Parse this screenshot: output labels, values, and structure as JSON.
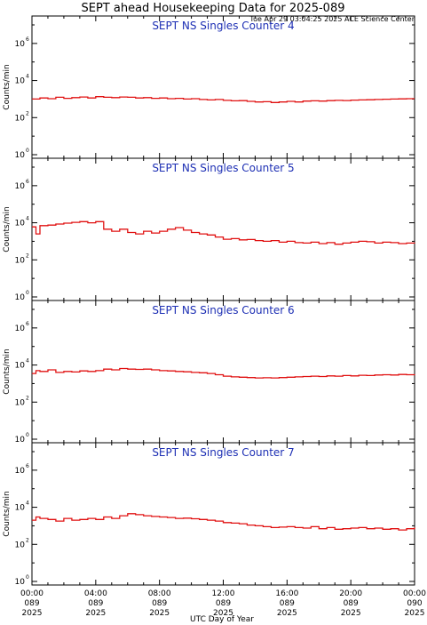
{
  "header": {
    "title": "SEPT ahead Housekeeping Data for 2025-089",
    "timestamp": "Tue Apr 29 03:04:25 2025 ACE Science Center"
  },
  "axis": {
    "ylabel": "Counts/min",
    "xlabel": "UTC Day of Year",
    "ytick_labels": [
      "10",
      "10",
      "10",
      "10"
    ],
    "ytick_exponents": [
      "0",
      "2",
      "4",
      "6"
    ],
    "xticks": [
      {
        "time": "00:00",
        "doy": "089",
        "year": "2025"
      },
      {
        "time": "04:00",
        "doy": "089",
        "year": "2025"
      },
      {
        "time": "08:00",
        "doy": "089",
        "year": "2025"
      },
      {
        "time": "12:00",
        "doy": "089",
        "year": "2025"
      },
      {
        "time": "16:00",
        "doy": "089",
        "year": "2025"
      },
      {
        "time": "20:00",
        "doy": "089",
        "year": "2025"
      },
      {
        "time": "00:00",
        "doy": "090",
        "year": "2025"
      }
    ]
  },
  "colors": {
    "series": "#e01010",
    "panel_title": "#1d2fb4",
    "axes": "#000000"
  },
  "chart_data": [
    {
      "type": "line",
      "title": "SEPT NS Singles Counter 4",
      "ylabel": "Counts/min",
      "yscale": "log",
      "ylim": [
        1,
        10000000
      ],
      "xlim": [
        0,
        24
      ],
      "x": [
        0.0,
        0.5,
        1.0,
        1.5,
        2.0,
        2.5,
        3.0,
        3.5,
        4.0,
        4.5,
        5.0,
        5.5,
        6.0,
        6.5,
        7.0,
        7.5,
        8.0,
        8.5,
        9.0,
        9.5,
        10.0,
        10.5,
        11.0,
        11.5,
        12.0,
        12.5,
        13.0,
        13.5,
        14.0,
        14.5,
        15.0,
        15.5,
        16.0,
        16.5,
        17.0,
        17.5,
        18.0,
        18.5,
        19.0,
        19.5,
        20.0,
        20.5,
        21.0,
        21.5,
        22.0,
        22.5,
        23.0,
        23.5,
        24.0
      ],
      "y": [
        1000,
        1150,
        1050,
        1250,
        1100,
        1200,
        1300,
        1150,
        1350,
        1250,
        1200,
        1300,
        1250,
        1150,
        1200,
        1100,
        1150,
        1050,
        1100,
        1000,
        1050,
        950,
        900,
        950,
        850,
        800,
        820,
        750,
        700,
        720,
        650,
        700,
        750,
        700,
        780,
        800,
        780,
        820,
        850,
        830,
        880,
        900,
        920,
        950,
        980,
        1000,
        1020,
        1050,
        1050
      ]
    },
    {
      "type": "line",
      "title": "SEPT NS Singles Counter 5",
      "ylabel": "Counts/min",
      "yscale": "log",
      "ylim": [
        1,
        10000000
      ],
      "xlim": [
        0,
        24
      ],
      "x": [
        0.0,
        0.25,
        0.5,
        1.0,
        1.5,
        2.0,
        2.5,
        3.0,
        3.5,
        4.0,
        4.5,
        5.0,
        5.5,
        6.0,
        6.5,
        7.0,
        7.5,
        8.0,
        8.5,
        9.0,
        9.5,
        10.0,
        10.5,
        11.0,
        11.5,
        12.0,
        12.5,
        13.0,
        13.5,
        14.0,
        14.5,
        15.0,
        15.5,
        16.0,
        16.5,
        17.0,
        17.5,
        18.0,
        18.5,
        19.0,
        19.5,
        20.0,
        20.5,
        21.0,
        21.5,
        22.0,
        22.5,
        23.0,
        23.5,
        24.0
      ],
      "y": [
        6000,
        2500,
        7000,
        7500,
        8500,
        9500,
        10500,
        11500,
        10000,
        11500,
        4500,
        3500,
        4500,
        3000,
        2500,
        3500,
        2800,
        3500,
        4500,
        5500,
        4000,
        3000,
        2500,
        2200,
        1700,
        1300,
        1400,
        1200,
        1250,
        1100,
        1000,
        1100,
        900,
        1000,
        850,
        800,
        900,
        750,
        850,
        700,
        800,
        900,
        1000,
        950,
        800,
        900,
        850,
        750,
        800,
        750
      ]
    },
    {
      "type": "line",
      "title": "SEPT NS Singles Counter 6",
      "ylabel": "Counts/min",
      "yscale": "log",
      "ylim": [
        1,
        10000000
      ],
      "xlim": [
        0,
        24
      ],
      "x": [
        0.0,
        0.25,
        0.5,
        1.0,
        1.5,
        2.0,
        2.5,
        3.0,
        3.5,
        4.0,
        4.5,
        5.0,
        5.5,
        6.0,
        6.5,
        7.0,
        7.5,
        8.0,
        8.5,
        9.0,
        9.5,
        10.0,
        10.5,
        11.0,
        11.5,
        12.0,
        12.5,
        13.0,
        13.5,
        14.0,
        14.5,
        15.0,
        15.5,
        16.0,
        16.5,
        17.0,
        17.5,
        18.0,
        18.5,
        19.0,
        19.5,
        20.0,
        20.5,
        21.0,
        21.5,
        22.0,
        22.5,
        23.0,
        23.5,
        24.0
      ],
      "y": [
        3500,
        5000,
        4500,
        5500,
        4000,
        4500,
        4200,
        4800,
        4500,
        5000,
        6000,
        5500,
        6500,
        6000,
        5800,
        6000,
        5500,
        5000,
        4800,
        4500,
        4300,
        4000,
        3800,
        3500,
        3000,
        2500,
        2300,
        2200,
        2100,
        2000,
        2050,
        2000,
        2100,
        2200,
        2300,
        2400,
        2500,
        2400,
        2600,
        2500,
        2700,
        2600,
        2800,
        2700,
        2900,
        3000,
        2900,
        3100,
        3000,
        3200
      ]
    },
    {
      "type": "line",
      "title": "SEPT NS Singles Counter 7",
      "ylabel": "Counts/min",
      "yscale": "log",
      "ylim": [
        1,
        10000000
      ],
      "xlim": [
        0,
        24
      ],
      "x": [
        0.0,
        0.25,
        0.5,
        1.0,
        1.5,
        2.0,
        2.5,
        3.0,
        3.5,
        4.0,
        4.5,
        5.0,
        5.5,
        6.0,
        6.5,
        7.0,
        7.5,
        8.0,
        8.5,
        9.0,
        9.5,
        10.0,
        10.5,
        11.0,
        11.5,
        12.0,
        12.5,
        13.0,
        13.5,
        14.0,
        14.5,
        15.0,
        15.5,
        16.0,
        16.5,
        17.0,
        17.5,
        18.0,
        18.5,
        19.0,
        19.5,
        20.0,
        20.5,
        21.0,
        21.5,
        22.0,
        22.5,
        23.0,
        23.5,
        24.0
      ],
      "y": [
        2000,
        3000,
        2500,
        2200,
        1800,
        2500,
        2000,
        2200,
        2500,
        2200,
        3000,
        2500,
        3500,
        4500,
        4000,
        3500,
        3200,
        3000,
        2800,
        2500,
        2600,
        2400,
        2200,
        2000,
        1800,
        1500,
        1400,
        1300,
        1100,
        1000,
        900,
        800,
        850,
        900,
        800,
        750,
        900,
        700,
        800,
        650,
        700,
        750,
        800,
        700,
        750,
        650,
        700,
        600,
        700,
        800
      ]
    }
  ]
}
